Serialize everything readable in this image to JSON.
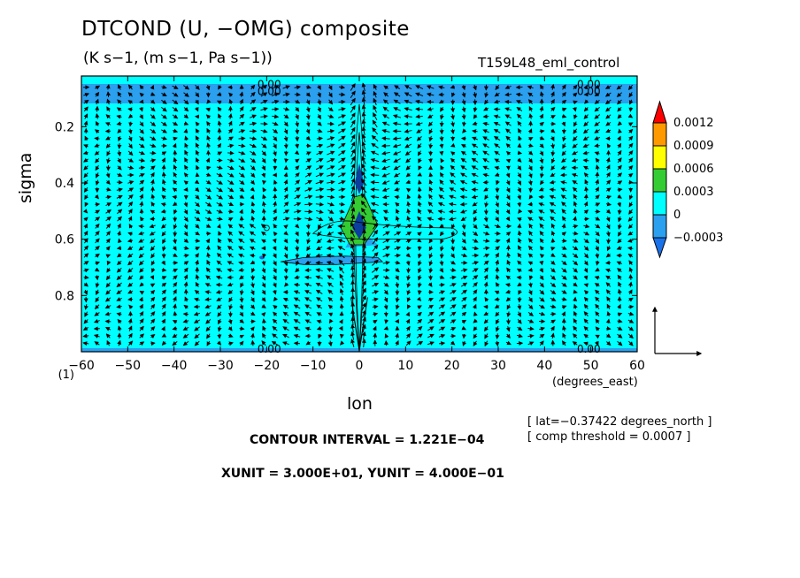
{
  "header": {
    "title": "DTCOND (U, −OMG) composite",
    "subtitle": "(K s−1, (m s−1, Pa s−1))",
    "run_name": "T159L48_eml_control"
  },
  "footer": {
    "contour_interval": "CONTOUR INTERVAL = 1.221E−04",
    "units": "XUNIT = 3.000E+01, YUNIT = 4.000E−01",
    "lat": "[ lat=−0.37422 degrees_north ]",
    "threshold": "[ comp threshold = 0.0007 ]"
  },
  "colors": {
    "neg": "#2aa0ee",
    "zero": "#00ffff",
    "pos1": "#33cc33",
    "pos2": "#ffff00",
    "pos3": "#ff9900",
    "top": "#ff0000",
    "bottom": "#1a72ea"
  },
  "chart_data": {
    "type": "heatmap",
    "title": "DTCOND (U, −OMG) composite",
    "xlabel": "lon",
    "x_units": "(degrees_east)",
    "ylabel": "sigma",
    "xlim": [
      -60,
      60
    ],
    "ylim": [
      1.0,
      0.02
    ],
    "x_ticks": [
      -60,
      -50,
      -40,
      -30,
      -20,
      -10,
      0,
      10,
      20,
      30,
      40,
      50,
      60
    ],
    "x_tick_labels": [
      "−60",
      "−50",
      "−40",
      "−30",
      "−20",
      "−10",
      "0",
      "10",
      "20",
      "30",
      "40",
      "50",
      "60"
    ],
    "y_ticks": [
      0.2,
      0.4,
      0.6,
      0.8
    ],
    "y_tick_labels": [
      "0.2",
      "0.4",
      "0.6",
      "0.8"
    ],
    "y_bottom_label": "(1)",
    "colorbar": {
      "levels": [
        -0.0003,
        0,
        0.0003,
        0.0006,
        0.0009,
        0.0012
      ],
      "labels": [
        "−0.0003",
        "0",
        "0.0003",
        "0.0006",
        "0.0009",
        "0.0012"
      ]
    },
    "contour_labels": [
      {
        "x": -22,
        "y": 0.05,
        "text": "0.00"
      },
      {
        "x": -22,
        "y": 0.075,
        "text": "0.00"
      },
      {
        "x": 47,
        "y": 0.05,
        "text": "0.00"
      },
      {
        "x": 47,
        "y": 0.075,
        "text": "0.00"
      },
      {
        "x": -22,
        "y": 0.99,
        "text": "0.00"
      },
      {
        "x": 47,
        "y": 0.99,
        "text": "0.00"
      }
    ],
    "vector_reference": {
      "x_unit": 30,
      "y_unit": 0.4
    }
  }
}
